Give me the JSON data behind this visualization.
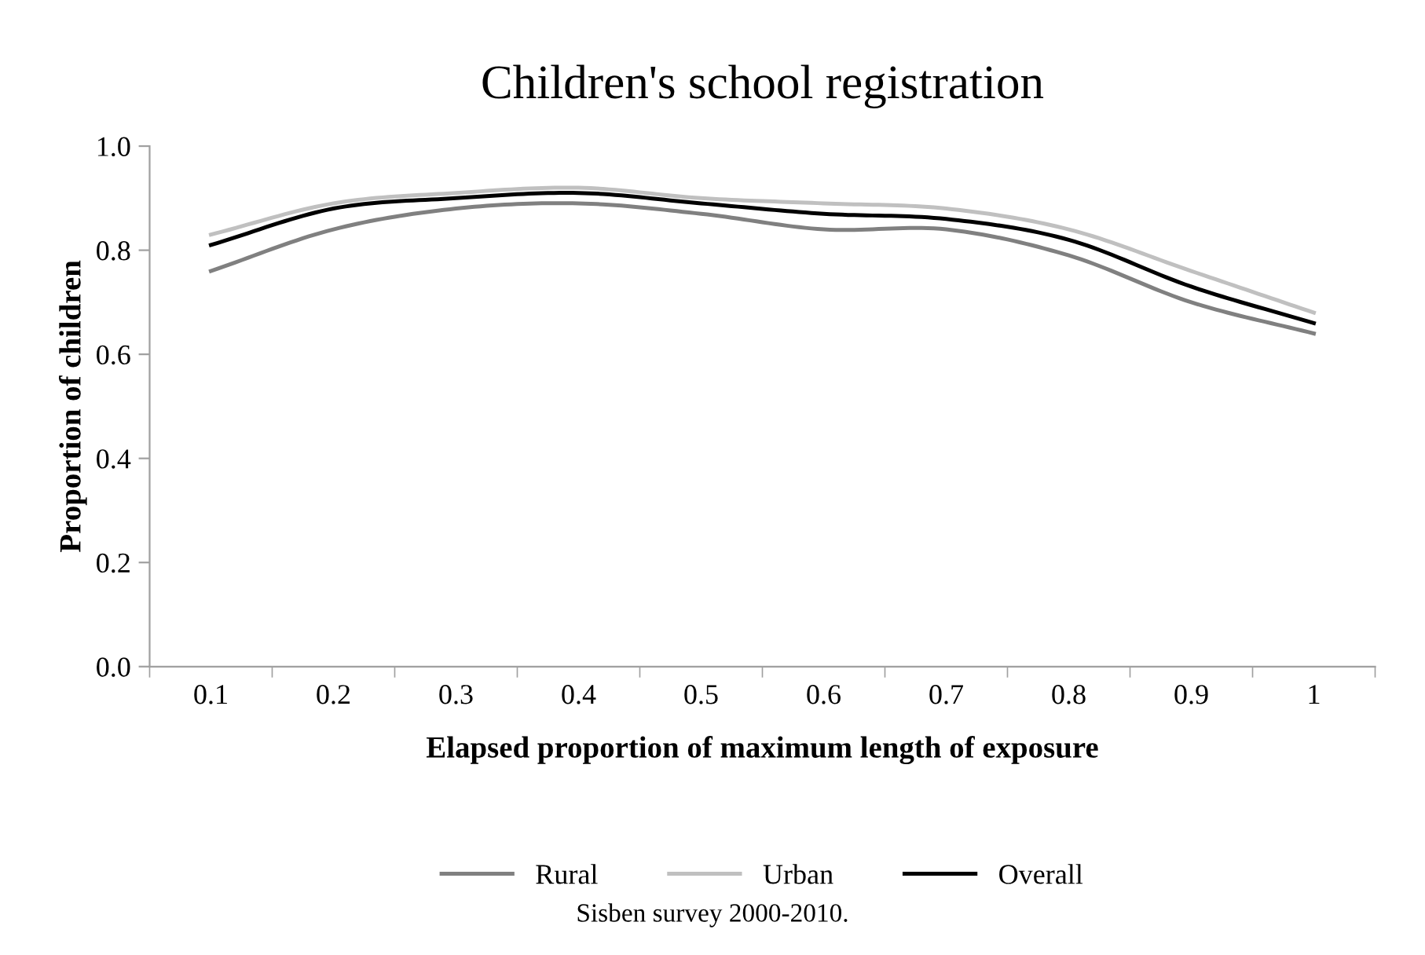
{
  "chart_data": {
    "type": "line",
    "title": "Children's school registration",
    "xlabel": "Elapsed proportion of maximum length of exposure",
    "ylabel": "Proportion of children",
    "categories": [
      "0.1",
      "0.2",
      "0.3",
      "0.4",
      "0.5",
      "0.6",
      "0.7",
      "0.8",
      "0.9",
      "1"
    ],
    "series": [
      {
        "name": "Rural",
        "color": "#808080",
        "values": [
          0.76,
          0.84,
          0.88,
          0.89,
          0.87,
          0.84,
          0.84,
          0.79,
          0.7,
          0.64
        ]
      },
      {
        "name": "Urban",
        "color": "#c0c0c0",
        "values": [
          0.83,
          0.89,
          0.91,
          0.92,
          0.9,
          0.89,
          0.88,
          0.84,
          0.76,
          0.68
        ]
      },
      {
        "name": "Overall",
        "color": "#000000",
        "values": [
          0.81,
          0.88,
          0.9,
          0.91,
          0.89,
          0.87,
          0.86,
          0.82,
          0.73,
          0.66
        ]
      }
    ],
    "ylim": [
      0,
      1
    ],
    "yticks": [
      {
        "value": 0,
        "label": "0.0"
      },
      {
        "value": 0.2,
        "label": "0.2"
      },
      {
        "value": 0.4,
        "label": "0.4"
      },
      {
        "value": 0.6,
        "label": "0.6"
      },
      {
        "value": 0.8,
        "label": "0.8"
      },
      {
        "value": 1,
        "label": "1.0"
      }
    ],
    "grid": false,
    "legend": "bottom",
    "marker": "none",
    "line_style": "solid",
    "annotations": [
      "Sisben survey 2000-2010."
    ]
  }
}
